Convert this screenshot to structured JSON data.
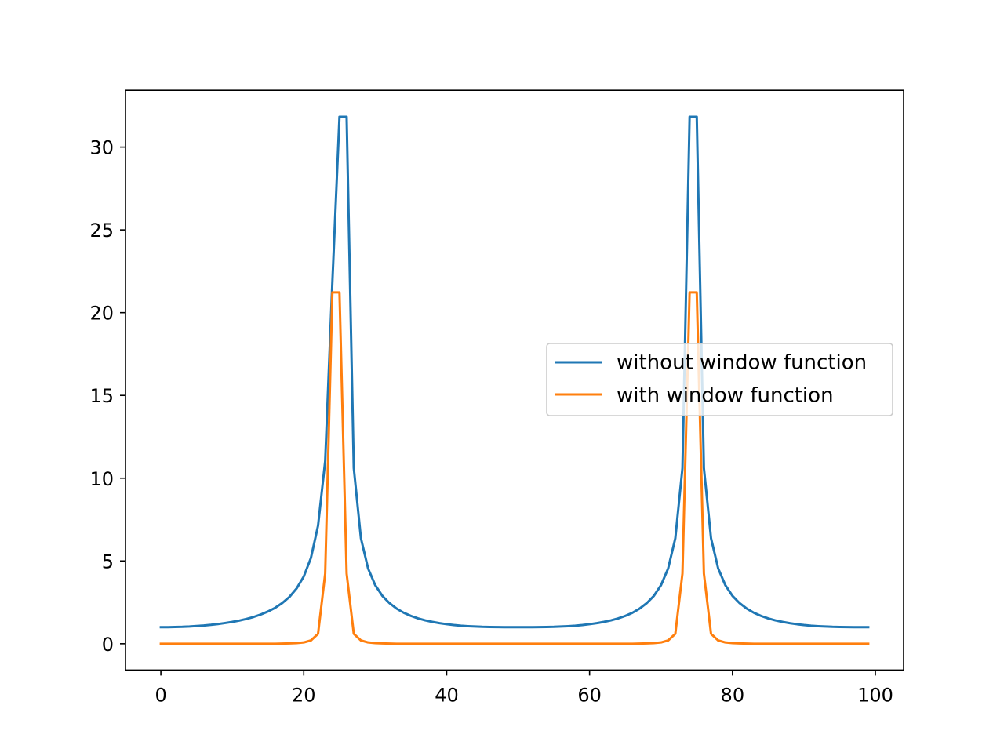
{
  "chart_data": {
    "type": "line",
    "title": "",
    "xlabel": "",
    "ylabel": "",
    "xlim": [
      -4.95,
      103.95
    ],
    "ylim": [
      -1.59,
      33.43
    ],
    "grid": false,
    "legend_position": "center-right",
    "x_ticks": [
      {
        "value": 0,
        "label": "0"
      },
      {
        "value": 20,
        "label": "20"
      },
      {
        "value": 40,
        "label": "40"
      },
      {
        "value": 60,
        "label": "60"
      },
      {
        "value": 80,
        "label": "80"
      },
      {
        "value": 100,
        "label": "100"
      }
    ],
    "y_ticks": [
      {
        "value": 0,
        "label": "0"
      },
      {
        "value": 5,
        "label": "5"
      },
      {
        "value": 10,
        "label": "10"
      },
      {
        "value": 15,
        "label": "15"
      },
      {
        "value": 20,
        "label": "20"
      },
      {
        "value": 25,
        "label": "25"
      },
      {
        "value": 30,
        "label": "30"
      }
    ],
    "x": [
      0,
      1,
      2,
      3,
      4,
      5,
      6,
      7,
      8,
      9,
      10,
      11,
      12,
      13,
      14,
      15,
      16,
      17,
      18,
      19,
      20,
      21,
      22,
      23,
      24,
      25,
      26,
      27,
      28,
      29,
      30,
      31,
      32,
      33,
      34,
      35,
      36,
      37,
      38,
      39,
      40,
      41,
      42,
      43,
      44,
      45,
      46,
      47,
      48,
      49,
      50,
      51,
      52,
      53,
      54,
      55,
      56,
      57,
      58,
      59,
      60,
      61,
      62,
      63,
      64,
      65,
      66,
      67,
      68,
      69,
      70,
      71,
      72,
      73,
      74,
      75,
      76,
      77,
      78,
      79,
      80,
      81,
      82,
      83,
      84,
      85,
      86,
      87,
      88,
      89,
      90,
      91,
      92,
      93,
      94,
      95,
      96,
      97,
      98,
      99
    ],
    "series": [
      {
        "name": "without window function",
        "color": "#1f77b4",
        "values": [
          1.0,
          1.0,
          1.01,
          1.02,
          1.04,
          1.07,
          1.1,
          1.14,
          1.19,
          1.25,
          1.32,
          1.4,
          1.5,
          1.62,
          1.77,
          1.95,
          2.17,
          2.46,
          2.83,
          3.34,
          4.06,
          5.18,
          7.13,
          11.04,
          21.8,
          31.83,
          31.83,
          10.61,
          6.37,
          4.55,
          3.54,
          2.89,
          2.45,
          2.12,
          1.87,
          1.68,
          1.53,
          1.41,
          1.32,
          1.24,
          1.18,
          1.13,
          1.09,
          1.06,
          1.04,
          1.02,
          1.01,
          1.005,
          1.0,
          1.0,
          1.0,
          1.0,
          1.0,
          1.005,
          1.01,
          1.02,
          1.04,
          1.06,
          1.09,
          1.13,
          1.18,
          1.24,
          1.32,
          1.41,
          1.53,
          1.68,
          1.87,
          2.12,
          2.45,
          2.89,
          3.54,
          4.55,
          6.37,
          10.61,
          31.83,
          31.83,
          10.61,
          6.37,
          4.55,
          3.54,
          2.89,
          2.45,
          2.12,
          1.87,
          1.68,
          1.53,
          1.41,
          1.32,
          1.24,
          1.18,
          1.13,
          1.09,
          1.06,
          1.04,
          1.02,
          1.01,
          1.005,
          1.0,
          1.0,
          1.0
        ]
      },
      {
        "name": "with window function",
        "color": "#ff7f0e",
        "values": [
          0,
          0,
          0,
          0,
          0,
          0,
          0,
          0,
          0,
          0,
          0,
          0,
          0,
          0,
          0,
          0,
          0,
          0.01,
          0.02,
          0.04,
          0.08,
          0.2,
          0.6,
          4.24,
          21.22,
          21.22,
          4.24,
          0.6,
          0.2,
          0.08,
          0.04,
          0.02,
          0.01,
          0,
          0,
          0,
          0,
          0,
          0,
          0,
          0,
          0,
          0,
          0,
          0,
          0,
          0,
          0,
          0,
          0,
          0,
          0,
          0,
          0,
          0,
          0,
          0,
          0,
          0,
          0,
          0,
          0,
          0,
          0,
          0,
          0,
          0,
          0.01,
          0.02,
          0.04,
          0.08,
          0.2,
          0.6,
          4.24,
          21.22,
          21.22,
          4.24,
          0.6,
          0.2,
          0.08,
          0.04,
          0.02,
          0.01,
          0,
          0,
          0,
          0,
          0,
          0,
          0,
          0,
          0,
          0,
          0,
          0,
          0,
          0,
          0,
          0,
          0
        ]
      }
    ]
  }
}
